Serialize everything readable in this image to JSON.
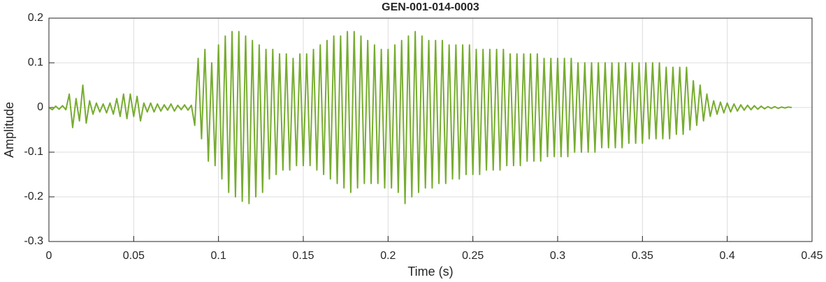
{
  "chart_data": {
    "type": "line",
    "title": "GEN-001-014-0003",
    "x_label": "Time (s)",
    "y_label": "Amplitude",
    "color": "#77ac30",
    "grid": true,
    "xlim": [
      0,
      0.45
    ],
    "xticks": [
      0,
      0.05,
      0.1,
      0.15,
      0.2,
      0.25,
      0.3,
      0.35,
      0.4,
      0.45
    ],
    "ylim": [
      -0.3,
      0.2
    ],
    "yticks": [
      -0.3,
      -0.2,
      -0.1,
      0,
      0.1,
      0.2
    ],
    "x": [
      0,
      0.002,
      0.004,
      0.006,
      0.008,
      0.01,
      0.012,
      0.014,
      0.016,
      0.018,
      0.02,
      0.022,
      0.024,
      0.026,
      0.028,
      0.03,
      0.032,
      0.034,
      0.036,
      0.038,
      0.04,
      0.042,
      0.044,
      0.046,
      0.048,
      0.05,
      0.052,
      0.054,
      0.056,
      0.058,
      0.06,
      0.062,
      0.064,
      0.066,
      0.068,
      0.07,
      0.072,
      0.074,
      0.076,
      0.078,
      0.08,
      0.082,
      0.084,
      0.086,
      0.088,
      0.09,
      0.092,
      0.094,
      0.096,
      0.098,
      0.1,
      0.102,
      0.104,
      0.106,
      0.108,
      0.11,
      0.112,
      0.114,
      0.116,
      0.118,
      0.12,
      0.122,
      0.124,
      0.126,
      0.128,
      0.13,
      0.132,
      0.134,
      0.136,
      0.138,
      0.14,
      0.142,
      0.144,
      0.146,
      0.148,
      0.15,
      0.152,
      0.154,
      0.156,
      0.158,
      0.16,
      0.162,
      0.164,
      0.166,
      0.168,
      0.17,
      0.172,
      0.174,
      0.176,
      0.178,
      0.18,
      0.182,
      0.184,
      0.186,
      0.188,
      0.19,
      0.192,
      0.194,
      0.196,
      0.198,
      0.2,
      0.202,
      0.204,
      0.206,
      0.208,
      0.21,
      0.212,
      0.214,
      0.216,
      0.218,
      0.22,
      0.222,
      0.224,
      0.226,
      0.228,
      0.23,
      0.232,
      0.234,
      0.236,
      0.238,
      0.24,
      0.242,
      0.244,
      0.246,
      0.248,
      0.25,
      0.252,
      0.254,
      0.256,
      0.258,
      0.26,
      0.262,
      0.264,
      0.266,
      0.268,
      0.27,
      0.272,
      0.274,
      0.276,
      0.278,
      0.28,
      0.282,
      0.284,
      0.286,
      0.288,
      0.29,
      0.292,
      0.294,
      0.296,
      0.298,
      0.3,
      0.302,
      0.304,
      0.306,
      0.308,
      0.31,
      0.312,
      0.314,
      0.316,
      0.318,
      0.32,
      0.322,
      0.324,
      0.326,
      0.328,
      0.33,
      0.332,
      0.334,
      0.336,
      0.338,
      0.34,
      0.342,
      0.344,
      0.346,
      0.348,
      0.35,
      0.352,
      0.354,
      0.356,
      0.358,
      0.36,
      0.362,
      0.364,
      0.366,
      0.368,
      0.37,
      0.372,
      0.374,
      0.376,
      0.378,
      0.38,
      0.382,
      0.384,
      0.386,
      0.388,
      0.39,
      0.392,
      0.394,
      0.396,
      0.398,
      0.4,
      0.402,
      0.404,
      0.406,
      0.408,
      0.41,
      0.412,
      0.414,
      0.416,
      0.418,
      0.42,
      0.422,
      0.424,
      0.426,
      0.428,
      0.43,
      0.432,
      0.434,
      0.436,
      0.438
    ],
    "values": [
      0,
      -0.005,
      0.003,
      -0.004,
      0.004,
      -0.005,
      0.03,
      -0.045,
      0.02,
      -0.03,
      0.05,
      -0.035,
      0.015,
      -0.015,
      0.01,
      -0.01,
      0.008,
      -0.012,
      0.01,
      -0.015,
      0.02,
      -0.02,
      0.03,
      -0.025,
      0.03,
      -0.02,
      0.025,
      -0.03,
      0.01,
      -0.01,
      0.01,
      -0.01,
      0.008,
      -0.008,
      0.006,
      -0.006,
      0.008,
      -0.008,
      0.005,
      -0.005,
      0.006,
      -0.006,
      0.005,
      -0.04,
      0.11,
      -0.07,
      0.13,
      -0.12,
      0.1,
      -0.13,
      0.14,
      -0.16,
      0.16,
      -0.19,
      0.17,
      -0.2,
      0.17,
      -0.21,
      0.16,
      -0.215,
      0.15,
      -0.2,
      0.14,
      -0.19,
      0.13,
      -0.16,
      0.13,
      -0.15,
      0.12,
      -0.14,
      0.12,
      -0.14,
      0.11,
      -0.13,
      0.12,
      -0.13,
      0.12,
      -0.13,
      0.13,
      -0.14,
      0.14,
      -0.15,
      0.15,
      -0.16,
      0.16,
      -0.17,
      0.16,
      -0.18,
      0.17,
      -0.19,
      0.17,
      -0.18,
      0.16,
      -0.17,
      0.15,
      -0.17,
      0.14,
      -0.17,
      0.13,
      -0.18,
      0.13,
      -0.18,
      0.14,
      -0.19,
      0.15,
      -0.215,
      0.16,
      -0.2,
      0.17,
      -0.19,
      0.16,
      -0.18,
      0.15,
      -0.18,
      0.15,
      -0.17,
      0.15,
      -0.17,
      0.14,
      -0.16,
      0.14,
      -0.16,
      0.14,
      -0.15,
      0.14,
      -0.15,
      0.13,
      -0.15,
      0.13,
      -0.14,
      0.13,
      -0.14,
      0.13,
      -0.14,
      0.13,
      -0.13,
      0.12,
      -0.13,
      0.12,
      -0.13,
      0.12,
      -0.12,
      0.12,
      -0.12,
      0.12,
      -0.12,
      0.11,
      -0.11,
      0.11,
      -0.11,
      0.11,
      -0.11,
      0.11,
      -0.11,
      0.11,
      -0.1,
      0.1,
      -0.1,
      0.1,
      -0.1,
      0.1,
      -0.1,
      0.1,
      -0.09,
      0.1,
      -0.09,
      0.1,
      -0.09,
      0.1,
      -0.09,
      0.1,
      -0.08,
      0.1,
      -0.08,
      0.1,
      -0.08,
      0.1,
      -0.07,
      0.1,
      -0.07,
      0.1,
      -0.07,
      0.09,
      -0.07,
      0.09,
      -0.06,
      0.09,
      -0.06,
      0.09,
      -0.05,
      0.06,
      -0.04,
      0.05,
      -0.03,
      0.03,
      -0.02,
      0.015,
      -0.015,
      0.012,
      -0.012,
      0.01,
      -0.01,
      0.008,
      -0.008,
      0.006,
      -0.006,
      0.005,
      -0.005,
      0.004,
      -0.004,
      0.003,
      -0.003,
      0.002,
      -0.002,
      0.002,
      -0.002,
      0.001,
      -0.001,
      0.001,
      0
    ]
  }
}
